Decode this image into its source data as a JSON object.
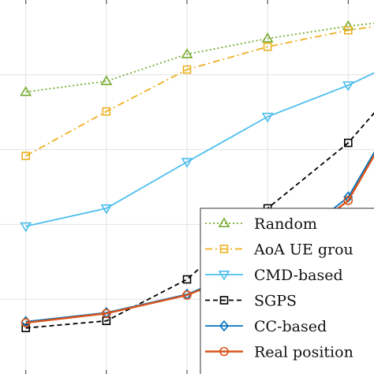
{
  "chart_data": {
    "type": "line",
    "x": [
      0,
      1,
      2,
      3,
      4,
      5
    ],
    "xlim": [
      -0.32,
      4.32
    ],
    "ylim": [
      0,
      1
    ],
    "grid": true,
    "legend_position": "bottom-right",
    "series": [
      {
        "name": "Random",
        "color": "#77AC30",
        "dash": "2,3",
        "marker": "triangle-up",
        "values": [
          0.754,
          0.783,
          0.855,
          0.897,
          0.93,
          0.955
        ]
      },
      {
        "name": "AoA UE grou",
        "color": "#EDB120",
        "dash": "9,4,2,4",
        "marker": "square",
        "values": [
          0.583,
          0.702,
          0.814,
          0.875,
          0.919,
          0.95
        ]
      },
      {
        "name": "CMD-based",
        "color": "#4DBEEE",
        "dash": "",
        "marker": "triangle-down",
        "values": [
          0.395,
          0.443,
          0.567,
          0.688,
          0.772,
          0.875
        ]
      },
      {
        "name": "SGPS",
        "color": "#000000",
        "dash": "6,4",
        "marker": "square-open",
        "values": [
          0.123,
          0.142,
          0.253,
          0.443,
          0.618,
          0.866
        ]
      },
      {
        "name": "CC-based",
        "color": "#0072BD",
        "dash": "",
        "marker": "diamond",
        "values": [
          0.14,
          0.164,
          0.213,
          0.304,
          0.473,
          0.843
        ]
      },
      {
        "name": "Real position",
        "color": "#D95319",
        "dash": "",
        "marker": "circle",
        "values": [
          0.137,
          0.162,
          0.211,
          0.296,
          0.464,
          0.837
        ]
      }
    ],
    "xlabel": "",
    "ylabel": "",
    "title": ""
  }
}
